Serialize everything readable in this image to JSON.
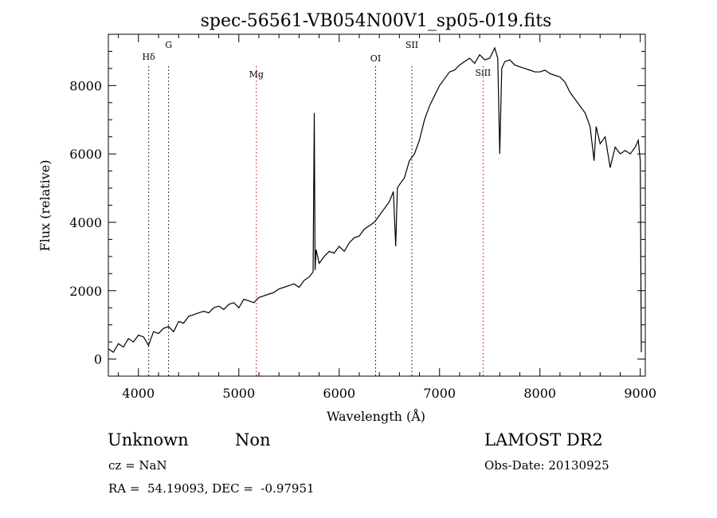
{
  "chart_data": {
    "type": "line",
    "title": "spec-56561-VB054N00V1_sp05-019.fits",
    "xlabel": "Wavelength (Å)",
    "ylabel": "Flux (relative)",
    "xlim": [
      3700,
      9050
    ],
    "ylim": [
      -500,
      9500
    ],
    "xticks": [
      4000,
      5000,
      6000,
      7000,
      8000,
      9000
    ],
    "yticks": [
      0,
      2000,
      4000,
      6000,
      8000
    ],
    "grid": false,
    "series": [
      {
        "color": "#000000",
        "x": [
          3700,
          3750,
          3800,
          3850,
          3900,
          3950,
          4000,
          4050,
          4100,
          4150,
          4200,
          4250,
          4300,
          4350,
          4400,
          4450,
          4500,
          4550,
          4600,
          4650,
          4700,
          4750,
          4800,
          4850,
          4900,
          4950,
          5000,
          5050,
          5100,
          5150,
          5200,
          5250,
          5300,
          5350,
          5400,
          5450,
          5500,
          5550,
          5600,
          5650,
          5700,
          5740,
          5752,
          5760,
          5770,
          5800,
          5850,
          5900,
          5950,
          6000,
          6050,
          6100,
          6150,
          6200,
          6250,
          6300,
          6350,
          6400,
          6450,
          6500,
          6540,
          6563,
          6580,
          6600,
          6650,
          6700,
          6750,
          6800,
          6850,
          6900,
          6950,
          7000,
          7050,
          7100,
          7150,
          7200,
          7250,
          7300,
          7350,
          7400,
          7450,
          7500,
          7550,
          7580,
          7600,
          7620,
          7650,
          7700,
          7750,
          7800,
          7850,
          7900,
          7950,
          8000,
          8050,
          8100,
          8150,
          8200,
          8250,
          8300,
          8350,
          8400,
          8450,
          8500,
          8540,
          8560,
          8600,
          8650,
          8700,
          8750,
          8800,
          8850,
          8900,
          8950,
          8980,
          9000,
          9010
        ],
        "y": [
          300,
          200,
          450,
          350,
          600,
          500,
          700,
          650,
          400,
          800,
          750,
          900,
          950,
          800,
          1100,
          1050,
          1250,
          1300,
          1350,
          1400,
          1350,
          1500,
          1550,
          1450,
          1600,
          1650,
          1500,
          1750,
          1700,
          1650,
          1800,
          1850,
          1900,
          1950,
          2050,
          2100,
          2150,
          2200,
          2100,
          2300,
          2400,
          2550,
          7200,
          2600,
          3200,
          2800,
          3000,
          3150,
          3100,
          3300,
          3150,
          3400,
          3550,
          3600,
          3800,
          3900,
          4000,
          4200,
          4400,
          4600,
          4900,
          3300,
          5000,
          5100,
          5300,
          5800,
          6000,
          6400,
          7000,
          7400,
          7700,
          8000,
          8200,
          8400,
          8450,
          8600,
          8700,
          8800,
          8650,
          8900,
          8750,
          8800,
          9100,
          8800,
          6000,
          8500,
          8700,
          8750,
          8600,
          8550,
          8500,
          8450,
          8400,
          8400,
          8450,
          8350,
          8300,
          8250,
          8100,
          7800,
          7600,
          7400,
          7200,
          6800,
          5800,
          6800,
          6300,
          6500,
          5600,
          6200,
          6000,
          6100,
          6000,
          6200,
          6400,
          5800,
          200
        ]
      }
    ],
    "lines": [
      {
        "label": "Hδ",
        "x": 4102,
        "color": "#000000"
      },
      {
        "label": "G",
        "x": 4300,
        "color": "#000000"
      },
      {
        "label": "Mg",
        "x": 5175,
        "color": "#cc0000"
      },
      {
        "label": "OI",
        "x": 6363,
        "color": "#000000"
      },
      {
        "label": "SII",
        "x": 6724,
        "color": "#000000"
      },
      {
        "label": "SiII",
        "x": 7434,
        "color": "#cc0000"
      }
    ]
  },
  "footer": {
    "class_label": "Unknown",
    "subclass_label": "Non",
    "survey": "LAMOST DR2",
    "cz": "cz = NaN",
    "obs_date": "Obs-Date: 20130925",
    "coords": "RA =  54.19093, DEC =  -0.97951"
  }
}
